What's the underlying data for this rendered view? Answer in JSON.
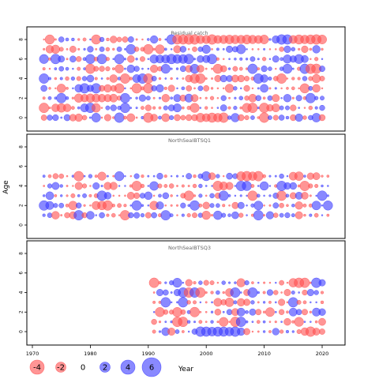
{
  "chart_data": {
    "type": "scatter",
    "subtype": "bubble-residuals",
    "title": "",
    "xlabel": "Year",
    "ylabel": "Age",
    "xlim": [
      1969,
      2023
    ],
    "ylim": [
      -1,
      9
    ],
    "x_ticks": [
      1970,
      1980,
      1990,
      2000,
      2010,
      2020
    ],
    "y_ticks": [
      0,
      2,
      4,
      6,
      8
    ],
    "legend": {
      "placement": "bottom",
      "values": [
        -4,
        -2,
        0,
        2,
        4,
        6
      ],
      "labels": [
        "-4",
        "-2",
        "0",
        "2",
        "4",
        "6"
      ],
      "title": "Year"
    },
    "colors": {
      "positive": "#3b3bff",
      "negative": "#ff4f4f",
      "grid": "#999999"
    },
    "panels": [
      {
        "name": "Residual catch",
        "years": [
          1972,
          2020
        ],
        "ages": [
          0,
          1,
          2,
          3,
          4,
          5,
          6,
          7,
          8
        ],
        "highlights": [
          {
            "age": 8,
            "year_from": 1995,
            "year_to": 2010,
            "sign": -1,
            "size": 3
          },
          {
            "age": 8,
            "year_from": 2015,
            "year_to": 2020,
            "sign": -1,
            "size": 3
          },
          {
            "age": 6,
            "year_from": 1991,
            "year_to": 1997,
            "sign": 1,
            "size": 3
          },
          {
            "age": 2,
            "year_from": 1978,
            "year_to": 1984,
            "sign": -1,
            "size": 2.5
          },
          {
            "age": 0,
            "year_from": 1999,
            "year_to": 2003,
            "sign": -1,
            "size": 3
          }
        ]
      },
      {
        "name": "NorthSeaIBTSQ1",
        "years": [
          1972,
          2021
        ],
        "ages": [
          1,
          2,
          3,
          4,
          5
        ],
        "highlights": [
          {
            "age": 5,
            "year_from": 2006,
            "year_to": 2009,
            "sign": -1,
            "size": 3
          },
          {
            "age": 2,
            "year_from": 1972,
            "year_to": 1973,
            "sign": 1,
            "size": 3
          }
        ]
      },
      {
        "name": "NorthSeaIBTSQ3",
        "years": [
          1991,
          2020
        ],
        "ages": [
          0,
          1,
          2,
          3,
          4,
          5
        ],
        "highlights": [
          {
            "age": 0,
            "year_from": 1999,
            "year_to": 2005,
            "sign": 1,
            "size": 3
          },
          {
            "age": 5,
            "year_from": 2015,
            "year_to": 2017,
            "sign": -1,
            "size": 3
          }
        ]
      }
    ]
  }
}
